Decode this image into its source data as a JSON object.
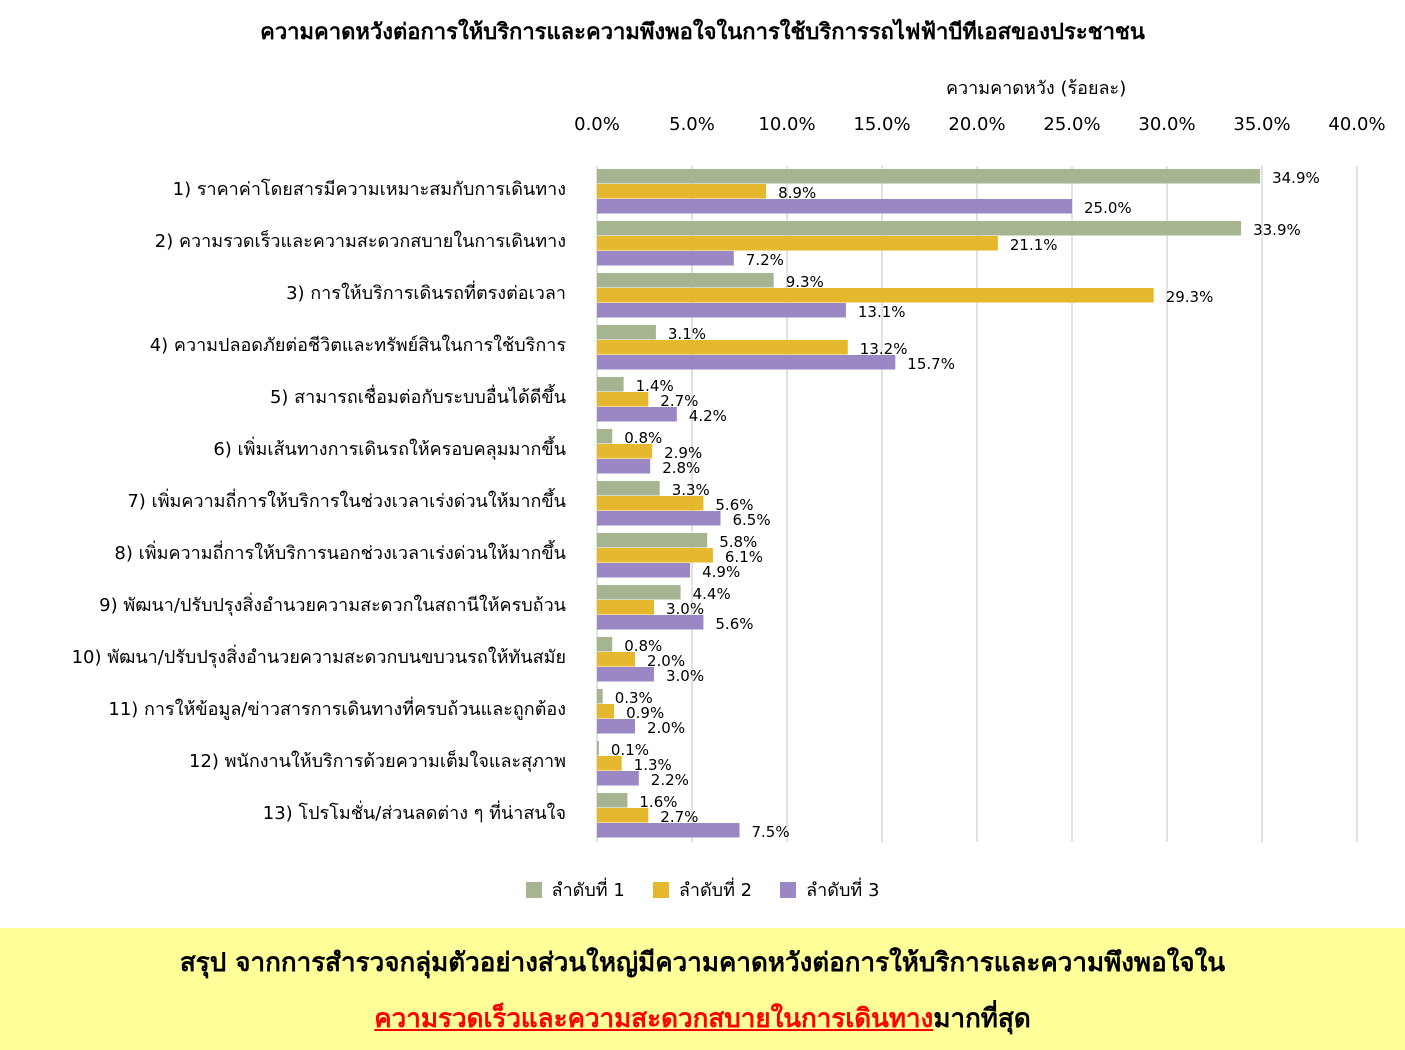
{
  "chart_data": {
    "type": "bar",
    "orientation": "horizontal",
    "title": "ความคาดหวังต่อการให้บริการและความพึงพอใจในการใช้บริการรถไฟฟ้าบีทีเอสของประชาชน",
    "xlabel": "ความคาดหวัง (ร้อยละ)",
    "ylabel": "",
    "xlim": [
      0,
      40
    ],
    "x_ticks": [
      "0.0%",
      "5.0%",
      "10.0%",
      "15.0%",
      "20.0%",
      "25.0%",
      "30.0%",
      "35.0%",
      "40.0%"
    ],
    "grid": true,
    "legend_position": "bottom",
    "categories": [
      "1) ราคาค่าโดยสารมีความเหมาะสมกับการเดินทาง",
      "2) ความรวดเร็วและความสะดวกสบายในการเดินทาง",
      "3) การให้บริการเดินรถที่ตรงต่อเวลา",
      "4) ความปลอดภัยต่อชีวิตและทรัพย์สินในการใช้บริการ",
      "5) สามารถเชื่อมต่อกับระบบอื่นได้ดีขึ้น",
      "6) เพิ่มเส้นทางการเดินรถให้ครอบคลุมมากขึ้น",
      "7) เพิ่มความถี่การให้บริการในช่วงเวลาเร่งด่วนให้มากขึ้น",
      "8) เพิ่มความถี่การให้บริการนอกช่วงเวลาเร่งด่วนให้มากขึ้น",
      "9) พัฒนา/ปรับปรุงสิ่งอำนวยความสะดวกในสถานีให้ครบถ้วน",
      "10) พัฒนา/ปรับปรุงสิ่งอำนวยความสะดวกบนขบวนรถให้ทันสมัย",
      "11) การให้ข้อมูล/ข่าวสารการเดินทางที่ครบถ้วนและถูกต้อง",
      "12) พนักงานให้บริการด้วยความเต็มใจและสุภาพ",
      "13) โปรโมชั่น/ส่วนลดต่าง ๆ ที่น่าสนใจ"
    ],
    "series": [
      {
        "name": "ลำดับที่ 1",
        "color": "#a5b592",
        "values": [
          34.9,
          33.9,
          9.3,
          3.1,
          1.4,
          0.8,
          3.3,
          5.8,
          4.4,
          0.8,
          0.3,
          0.1,
          1.6
        ],
        "labels": [
          "34.9%",
          "33.9%",
          "9.3%",
          "3.1%",
          "1.4%",
          "0.8%",
          "3.3%",
          "5.8%",
          "4.4%",
          "0.8%",
          "0.3%",
          "0.1%",
          "1.6%"
        ]
      },
      {
        "name": "ลำดับที่ 2",
        "color": "#e6b82e",
        "values": [
          8.9,
          21.1,
          29.3,
          13.2,
          2.7,
          2.9,
          5.6,
          6.1,
          3.0,
          2.0,
          0.9,
          1.3,
          2.7
        ],
        "labels": [
          "8.9%",
          "21.1%",
          "29.3%",
          "13.2%",
          "2.7%",
          "2.9%",
          "5.6%",
          "6.1%",
          "3.0%",
          "2.0%",
          "0.9%",
          "1.3%",
          "2.7%"
        ]
      },
      {
        "name": "ลำดับที่ 3",
        "color": "#9b87c4",
        "values": [
          25.0,
          7.2,
          13.1,
          15.7,
          4.2,
          2.8,
          6.5,
          4.9,
          5.6,
          3.0,
          2.0,
          2.2,
          7.5
        ],
        "labels": [
          "25.0%",
          "7.2%",
          "13.1%",
          "15.7%",
          "4.2%",
          "2.8%",
          "6.5%",
          "4.9%",
          "5.6%",
          "3.0%",
          "2.0%",
          "2.2%",
          "7.5%"
        ]
      }
    ]
  },
  "summary": {
    "line1": "สรุป จากการสำรวจกลุ่มตัวอย่างส่วนใหญ่มีความคาดหวังต่อการให้บริการและความพึงพอใจใน",
    "highlight": "ความรวดเร็วและความสะดวกสบายในการเดินทาง",
    "line2_suffix": "มากที่สุด",
    "background_color": "#ffff99",
    "highlight_color": "#ff0000"
  }
}
